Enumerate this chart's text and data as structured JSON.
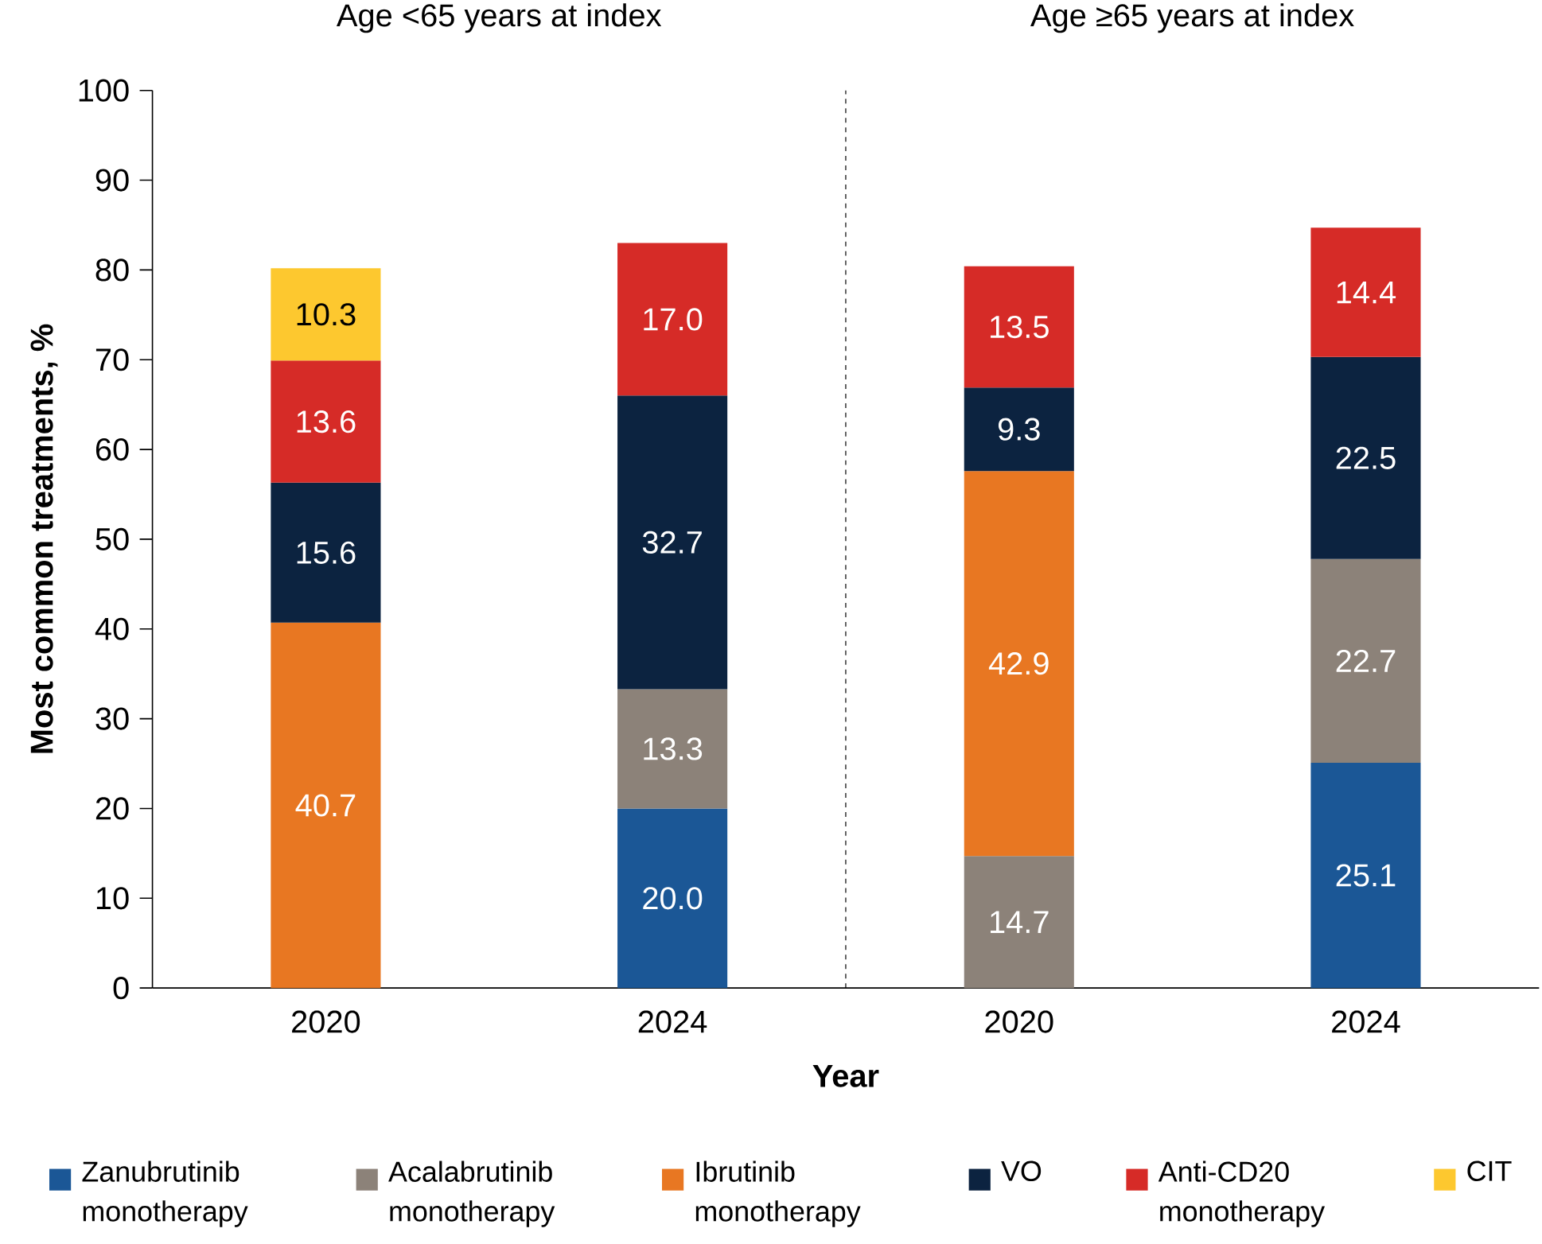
{
  "chart_data": {
    "type": "bar",
    "stacked": true,
    "categories": [
      "2020",
      "2024",
      "2020",
      "2024"
    ],
    "xlabel": "Year",
    "ylabel": "Most common treatments, %",
    "ylim": [
      0,
      100
    ],
    "yticks": [
      0,
      10,
      20,
      30,
      40,
      50,
      60,
      70,
      80,
      90,
      100
    ],
    "grid": false,
    "legend": "bottom",
    "annotations": [
      "Age <65 years at index",
      "Age ≥65 years at index"
    ],
    "series": [
      {
        "name": "Zanubrutinib monotherapy",
        "color": "#1b5796",
        "values": [
          null,
          20.0,
          null,
          25.1
        ],
        "value_labels": [
          null,
          "20.0",
          null,
          "25.1"
        ]
      },
      {
        "name": "Acalabrutinib monotherapy",
        "color": "#8c8279",
        "values": [
          null,
          13.3,
          14.7,
          22.7
        ],
        "value_labels": [
          null,
          "13.3",
          "14.7",
          "22.7"
        ]
      },
      {
        "name": "Ibrutinib monotherapy",
        "color": "#e87722",
        "values": [
          40.7,
          null,
          42.9,
          null
        ],
        "value_labels": [
          "40.7",
          null,
          "42.9",
          null
        ]
      },
      {
        "name": "VO",
        "color": "#0c2340",
        "values": [
          15.6,
          32.7,
          9.3,
          22.5
        ],
        "value_labels": [
          "15.6",
          "32.7",
          "9.3",
          "22.5"
        ]
      },
      {
        "name": "Anti-CD20 monotherapy",
        "color": "#d62b27",
        "values": [
          13.6,
          17.0,
          13.5,
          14.4
        ],
        "value_labels": [
          "13.6",
          "17.0",
          "13.5",
          "14.4"
        ]
      },
      {
        "name": "CIT",
        "color": "#fdc82f",
        "values": [
          10.3,
          null,
          null,
          null
        ],
        "value_labels": [
          "10.3",
          null,
          null,
          null
        ]
      }
    ]
  }
}
